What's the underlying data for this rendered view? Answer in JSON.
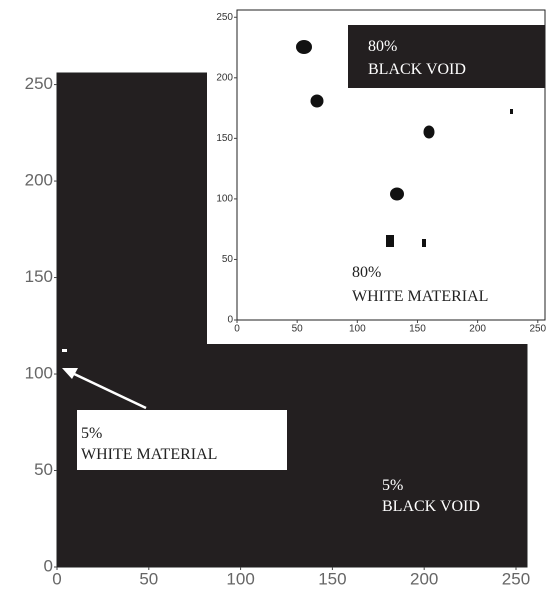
{
  "chart_data": [
    {
      "type": "image",
      "xlim": [
        0,
        256
      ],
      "ylim": [
        0,
        256
      ],
      "xticks": [
        0,
        50,
        100,
        150,
        200,
        250
      ],
      "yticks": [
        0,
        50,
        100,
        150,
        200,
        250
      ],
      "color": "#231f20",
      "annotations": [
        "5%",
        "WHITE MATERIAL",
        "5%",
        "BLACK VOID"
      ]
    },
    {
      "type": "image",
      "xlim": [
        0,
        256
      ],
      "ylim": [
        0,
        256
      ],
      "xticks": [
        0,
        50,
        100,
        150,
        200,
        250
      ],
      "yticks": [
        0,
        50,
        100,
        150,
        200,
        250
      ],
      "color": "#ffffff",
      "annotations": [
        "80%",
        "BLACK VOID",
        "80%",
        "WHITE MATERIAL"
      ]
    }
  ]
}
